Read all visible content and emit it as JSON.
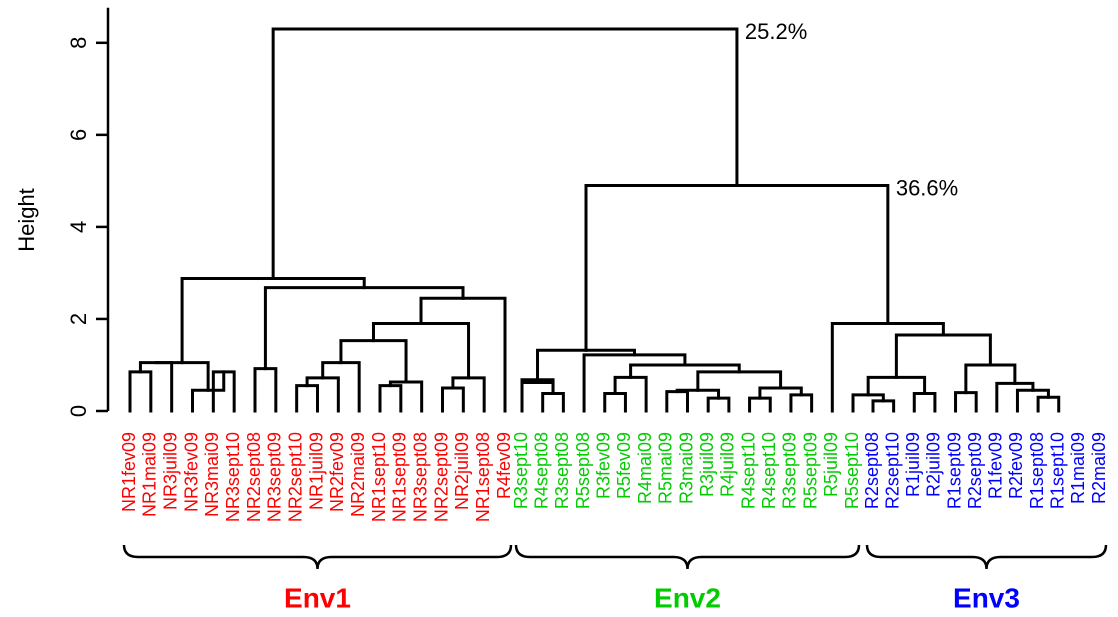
{
  "chart_data": {
    "type": "dendrogram",
    "ylabel": "Height",
    "ylim": [
      0,
      8.5
    ],
    "yticks": [
      0,
      2,
      4,
      6,
      8
    ],
    "annotations": [
      {
        "text": "25.2%",
        "node": "root"
      },
      {
        "text": "36.6%",
        "node": "env23"
      }
    ],
    "groups": [
      {
        "name": "Env1",
        "color": "#ff0000",
        "leaves": [
          "NR1fev09",
          "NR1mai09",
          "NR3juil09",
          "NR3fev09",
          "NR3mai09",
          "NR3sept10",
          "NR2sept08",
          "NR3sept09",
          "NR2sept10",
          "NR1juil09",
          "NR2fev09",
          "NR2mai09",
          "NR1sept10",
          "NR1sept09",
          "NR3sept08",
          "NR2sept09",
          "NR2juil09",
          "NR1sept08",
          "R4fev09"
        ]
      },
      {
        "name": "Env2",
        "color": "#00cc00",
        "leaves": [
          "R3sept10",
          "R4sept08",
          "R3sept08",
          "R5sept08",
          "R3fev09",
          "R5fev09",
          "R4mai09",
          "R5mai09",
          "R3mai09",
          "R3juil09",
          "R4juil09",
          "R4sept10",
          "R4sept10",
          "R3sept09",
          "R5sept09",
          "R5juil09",
          "R5sept10"
        ]
      },
      {
        "name": "Env3",
        "color": "#0000ff",
        "leaves": [
          "R2sept08",
          "R2sept10",
          "R1juil09",
          "R2juil09",
          "R1sept09",
          "R2sept09",
          "R1fev09",
          "R2fev09",
          "R1sept08",
          "R1sept10",
          "R1mai09",
          "R2mai09"
        ]
      }
    ],
    "merges": [
      {
        "id": "a1",
        "children": [
          0,
          1
        ],
        "height": 0.85
      },
      {
        "id": "a2",
        "children": [
          "a1",
          2
        ],
        "height": 1.05
      },
      {
        "id": "a3",
        "children": [
          4,
          5
        ],
        "height": 0.85
      },
      {
        "id": "a4",
        "children": [
          3,
          "a3"
        ],
        "height": 0.45
      },
      {
        "id": "a5",
        "children": [
          "a2",
          "a4"
        ],
        "height": 1.05
      },
      {
        "id": "b1",
        "children": [
          6,
          7
        ],
        "height": 0.92
      },
      {
        "id": "b2",
        "children": [
          8,
          9
        ],
        "height": 0.55
      },
      {
        "id": "b3",
        "children": [
          "b2",
          10
        ],
        "height": 0.72
      },
      {
        "id": "b4",
        "children": [
          "b3",
          11
        ],
        "height": 1.05
      },
      {
        "id": "b5",
        "children": [
          12,
          13
        ],
        "height": 0.55
      },
      {
        "id": "b6",
        "children": [
          "b5",
          14
        ],
        "height": 0.63
      },
      {
        "id": "b7",
        "children": [
          "b4",
          "b6"
        ],
        "height": 1.53
      },
      {
        "id": "b8",
        "children": [
          15,
          16
        ],
        "height": 0.5
      },
      {
        "id": "b9",
        "children": [
          "b8",
          17
        ],
        "height": 0.72
      },
      {
        "id": "b10",
        "children": [
          "b7",
          "b9"
        ],
        "height": 1.9
      },
      {
        "id": "b11",
        "children": [
          "b10",
          18
        ],
        "height": 2.45
      },
      {
        "id": "b12",
        "children": [
          "b1",
          "b11"
        ],
        "height": 2.68
      },
      {
        "id": "env1",
        "children": [
          "a5",
          "b12"
        ],
        "height": 2.88
      },
      {
        "id": "c1",
        "children": [
          20,
          21
        ],
        "height": 0.38
      },
      {
        "id": "c2",
        "children": [
          "c1",
          19
        ],
        "height": 0.62
      },
      {
        "id": "c3",
        "children": [
          19,
          "c1"
        ],
        "height": 0.68
      },
      {
        "id": "c4",
        "children": [
          23,
          24
        ],
        "height": 0.38
      },
      {
        "id": "c5",
        "children": [
          "c4",
          25
        ],
        "height": 0.73
      },
      {
        "id": "c6",
        "children": [
          26,
          27
        ],
        "height": 0.42
      },
      {
        "id": "c7",
        "children": [
          28,
          29
        ],
        "height": 0.28
      },
      {
        "id": "c8",
        "children": [
          "c6",
          "c7"
        ],
        "height": 0.45
      },
      {
        "id": "c9",
        "children": [
          30,
          31
        ],
        "height": 0.28
      },
      {
        "id": "c10",
        "children": [
          32,
          33
        ],
        "height": 0.35
      },
      {
        "id": "c11",
        "children": [
          "c9",
          "c10"
        ],
        "height": 0.5
      },
      {
        "id": "c12",
        "children": [
          "c8",
          "c11"
        ],
        "height": 0.85
      },
      {
        "id": "c13",
        "children": [
          "c5",
          "c12"
        ],
        "height": 1.0
      },
      {
        "id": "c14",
        "children": [
          22,
          "c13"
        ],
        "height": 1.22
      },
      {
        "id": "env2",
        "children": [
          "c3",
          "c14"
        ],
        "height": 1.32
      },
      {
        "id": "d1",
        "children": [
          36,
          37
        ],
        "height": 0.22
      },
      {
        "id": "d2",
        "children": [
          35,
          "d1"
        ],
        "height": 0.35
      },
      {
        "id": "d3",
        "children": [
          38,
          39
        ],
        "height": 0.38
      },
      {
        "id": "d4",
        "children": [
          "d2",
          "d3"
        ],
        "height": 0.73
      },
      {
        "id": "d5",
        "children": [
          40,
          41
        ],
        "height": 0.4
      },
      {
        "id": "d6",
        "children": [
          44,
          45
        ],
        "height": 0.3
      },
      {
        "id": "d7",
        "children": [
          43,
          "d6"
        ],
        "height": 0.45
      },
      {
        "id": "d8",
        "children": [
          42,
          "d7"
        ],
        "height": 0.6
      },
      {
        "id": "d9",
        "children": [
          "d5",
          "d8"
        ],
        "height": 1.0
      },
      {
        "id": "d10",
        "children": [
          "d4",
          "d9"
        ],
        "height": 1.65
      },
      {
        "id": "env3",
        "children": [
          34,
          "d10"
        ],
        "height": 1.9
      },
      {
        "id": "env23",
        "children": [
          "env2",
          "env3"
        ],
        "height": 4.9
      },
      {
        "id": "root",
        "children": [
          "env1",
          "env23"
        ],
        "height": 8.3
      }
    ]
  }
}
